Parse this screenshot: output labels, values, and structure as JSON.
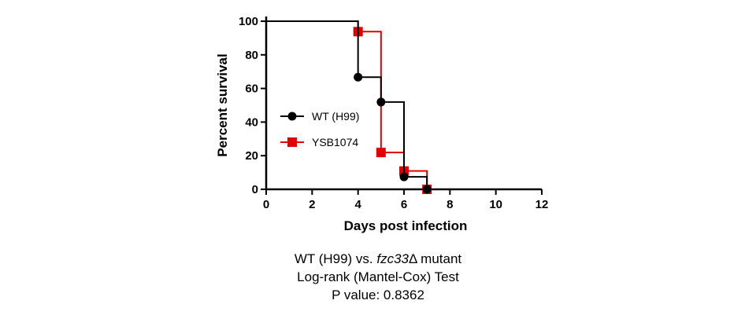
{
  "chart_data": {
    "type": "line",
    "step": true,
    "xlabel": "Days post infection",
    "ylabel": "Percent survival",
    "xlim": [
      0,
      12
    ],
    "ylim": [
      0,
      100
    ],
    "xticks": [
      0,
      2,
      4,
      6,
      8,
      10,
      12
    ],
    "yticks": [
      0,
      20,
      40,
      60,
      80,
      100
    ],
    "grid": false,
    "legend_position": "center-left",
    "series": [
      {
        "name": "WT (H99)",
        "color": "#000000",
        "marker": "circle",
        "x": [
          0,
          4,
          5,
          6,
          7
        ],
        "y": [
          100,
          66.7,
          51.9,
          7.4,
          0
        ],
        "marker_x": [
          4,
          5,
          6,
          7
        ],
        "marker_y": [
          66.7,
          51.9,
          7.4,
          0
        ]
      },
      {
        "name": "YSB1074",
        "color": "#e00000",
        "marker": "square",
        "x": [
          0,
          4,
          5,
          6,
          7
        ],
        "y": [
          100,
          93.8,
          21.9,
          10.9,
          0
        ],
        "marker_x": [
          4,
          5,
          6,
          7
        ],
        "marker_y": [
          93.8,
          21.9,
          10.9,
          0
        ]
      }
    ]
  },
  "caption": {
    "line1_prefix": "WT (H99) vs. ",
    "line1_italic": "fzc33",
    "line1_suffix": "Δ mutant",
    "line2": "Log-rank (Mantel-Cox) Test",
    "line3": "P value: 0.8362"
  }
}
